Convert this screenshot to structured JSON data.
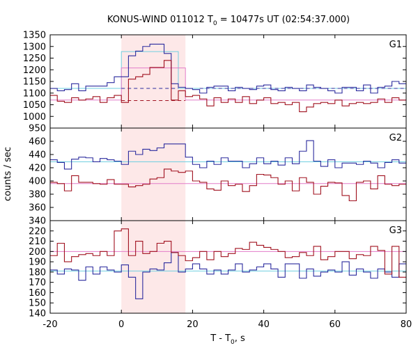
{
  "chart_data": {
    "type": "line",
    "title_main": "KONUS-WIND 011012 T",
    "title_sub": "0",
    "title_rest": " = 10477s UT (02:54:37.000)",
    "xlabel_main": "T - T",
    "xlabel_sub": "0",
    "xlabel_rest": ", s",
    "ylabel": "counts / sec",
    "xlim": [
      -20,
      80
    ],
    "x_ticks": [
      "-20",
      "0",
      "20",
      "40",
      "60",
      "80"
    ],
    "highlight_interval": [
      0,
      18
    ],
    "colors": {
      "blue": "#2b2b9e",
      "red": "#a0101e",
      "cyan": "#6fcfe0",
      "pink": "#e27cc9",
      "shade": "#fde8e8"
    },
    "bin_edges": [
      -20,
      -18,
      -16,
      -14,
      -12,
      -10,
      -8,
      -6,
      -4,
      -2,
      0,
      2,
      4,
      6,
      8,
      10,
      12,
      14,
      16,
      18,
      20,
      22,
      24,
      26,
      28,
      30,
      32,
      34,
      36,
      38,
      40,
      42,
      44,
      46,
      48,
      50,
      52,
      54,
      56,
      58,
      60,
      62,
      64,
      66,
      68,
      70,
      72,
      74,
      76,
      78,
      80
    ],
    "panels": [
      {
        "label": "G1",
        "ylim": [
          950,
          1350
        ],
        "y_ticks": [
          950,
          1000,
          1050,
          1100,
          1150,
          1200,
          1250,
          1300,
          1350
        ],
        "series": [
          {
            "color": "blue",
            "values": [
              1120,
              1110,
              1115,
              1140,
              1110,
              1130,
              1130,
              1130,
              1145,
              1170,
              1170,
              1260,
              1280,
              1300,
              1310,
              1310,
              1270,
              1140,
              1125,
              1120,
              1115,
              1100,
              1125,
              1130,
              1130,
              1110,
              1125,
              1120,
              1115,
              1130,
              1135,
              1115,
              1110,
              1125,
              1120,
              1110,
              1135,
              1125,
              1120,
              1110,
              1100,
              1125,
              1125,
              1110,
              1135,
              1100,
              1125,
              1130,
              1150,
              1140
            ]
          },
          {
            "color": "red",
            "values": [
              1090,
              1065,
              1060,
              1080,
              1070,
              1075,
              1085,
              1060,
              1080,
              1090,
              1060,
              1160,
              1170,
              1180,
              1210,
              1210,
              1240,
              1070,
              1110,
              1085,
              1090,
              1075,
              1045,
              1080,
              1060,
              1075,
              1060,
              1085,
              1055,
              1070,
              1080,
              1055,
              1060,
              1050,
              1060,
              1020,
              1040,
              1055,
              1060,
              1055,
              1070,
              1045,
              1055,
              1060,
              1055,
              1060,
              1075,
              1060,
              1080,
              1070
            ]
          }
        ],
        "bg_lines": [
          {
            "color": "cyan",
            "segments": [
              [
                -20,
                1120,
                "solid"
              ],
              [
                0,
                1120,
                "dashed"
              ],
              [
                16,
                1120,
                "solid"
              ],
              [
                80,
                1120,
                "solid"
              ]
            ]
          },
          {
            "color": "pink",
            "segments": [
              [
                -20,
                1070,
                "solid"
              ],
              [
                0,
                1070,
                "dashed"
              ],
              [
                18,
                1070,
                "solid"
              ],
              [
                80,
                1070,
                "solid"
              ]
            ]
          }
        ],
        "dash_lines": [
          {
            "color": "blue",
            "x_range": [
              0,
              16
            ],
            "y": 1120
          },
          {
            "color": "red",
            "x_range": [
              0,
              18
            ],
            "y": 1068
          }
        ],
        "peak_boxes": [
          {
            "color": "cyan",
            "x_range": [
              0,
              16
            ],
            "y": 1278
          },
          {
            "color": "pink",
            "x_range": [
              0,
              18
            ],
            "y": 1208
          }
        ]
      },
      {
        "label": "G2",
        "ylim": [
          340,
          480
        ],
        "y_ticks": [
          340,
          360,
          380,
          400,
          420,
          440,
          460
        ],
        "series": [
          {
            "color": "blue",
            "values": [
              432,
              428,
              418,
              433,
              436,
              435,
              429,
              434,
              432,
              430,
              425,
              445,
              440,
              448,
              446,
              450,
              456,
              456,
              456,
              436,
              425,
              420,
              430,
              425,
              435,
              430,
              430,
              420,
              426,
              435,
              426,
              430,
              424,
              435,
              426,
              445,
              461,
              430,
              422,
              432,
              420,
              427,
              427,
              425,
              430,
              427,
              420,
              428,
              432,
              427
            ]
          },
          {
            "color": "red",
            "values": [
              398,
              396,
              385,
              408,
              398,
              398,
              396,
              395,
              402,
              395,
              395,
              391,
              393,
              395,
              403,
              405,
              418,
              415,
              413,
              415,
              400,
              398,
              388,
              386,
              400,
              393,
              395,
              384,
              393,
              410,
              409,
              405,
              395,
              400,
              385,
              405,
              398,
              380,
              392,
              398,
              397,
              378,
              370,
              398,
              400,
              388,
              408,
              395,
              393,
              395
            ]
          }
        ],
        "bg_lines": [
          {
            "color": "cyan",
            "segments": [
              [
                -20,
                429,
                "solid"
              ],
              [
                80,
                429,
                "solid"
              ]
            ]
          },
          {
            "color": "pink",
            "segments": [
              [
                -20,
                396,
                "solid"
              ],
              [
                80,
                396,
                "solid"
              ]
            ]
          }
        ]
      },
      {
        "label": "G3",
        "ylim": [
          140,
          230
        ],
        "y_ticks": [
          140,
          150,
          160,
          170,
          180,
          190,
          200,
          210,
          220
        ],
        "series": [
          {
            "color": "blue",
            "values": [
              182,
              178,
              183,
              182,
              172,
              185,
              178,
              185,
              182,
              180,
              187,
              175,
              154,
              180,
              183,
              182,
              189,
              199,
              180,
              183,
              188,
              183,
              178,
              182,
              178,
              182,
              188,
              180,
              182,
              185,
              188,
              183,
              175,
              188,
              188,
              174,
              183,
              176,
              180,
              182,
              180,
              190,
              177,
              183,
              180,
              174,
              183,
              180,
              175,
              188
            ]
          },
          {
            "color": "red",
            "values": [
              196,
              208,
              190,
              195,
              197,
              198,
              196,
              200,
              196,
              220,
              222,
              196,
              210,
              198,
              200,
              208,
              210,
              199,
              196,
              191,
              194,
              200,
              192,
              200,
              195,
              198,
              203,
              202,
              209,
              206,
              204,
              202,
              200,
              194,
              195,
              199,
              196,
              205,
              192,
              195,
              200,
              200,
              193,
              197,
              196,
              205,
              201,
              178,
              205,
              175
            ]
          }
        ],
        "bg_lines": [
          {
            "color": "cyan",
            "segments": [
              [
                -20,
                181,
                "solid"
              ],
              [
                80,
                181,
                "solid"
              ]
            ]
          },
          {
            "color": "pink",
            "segments": [
              [
                -20,
                200,
                "solid"
              ],
              [
                80,
                200,
                "solid"
              ]
            ]
          }
        ]
      }
    ]
  }
}
